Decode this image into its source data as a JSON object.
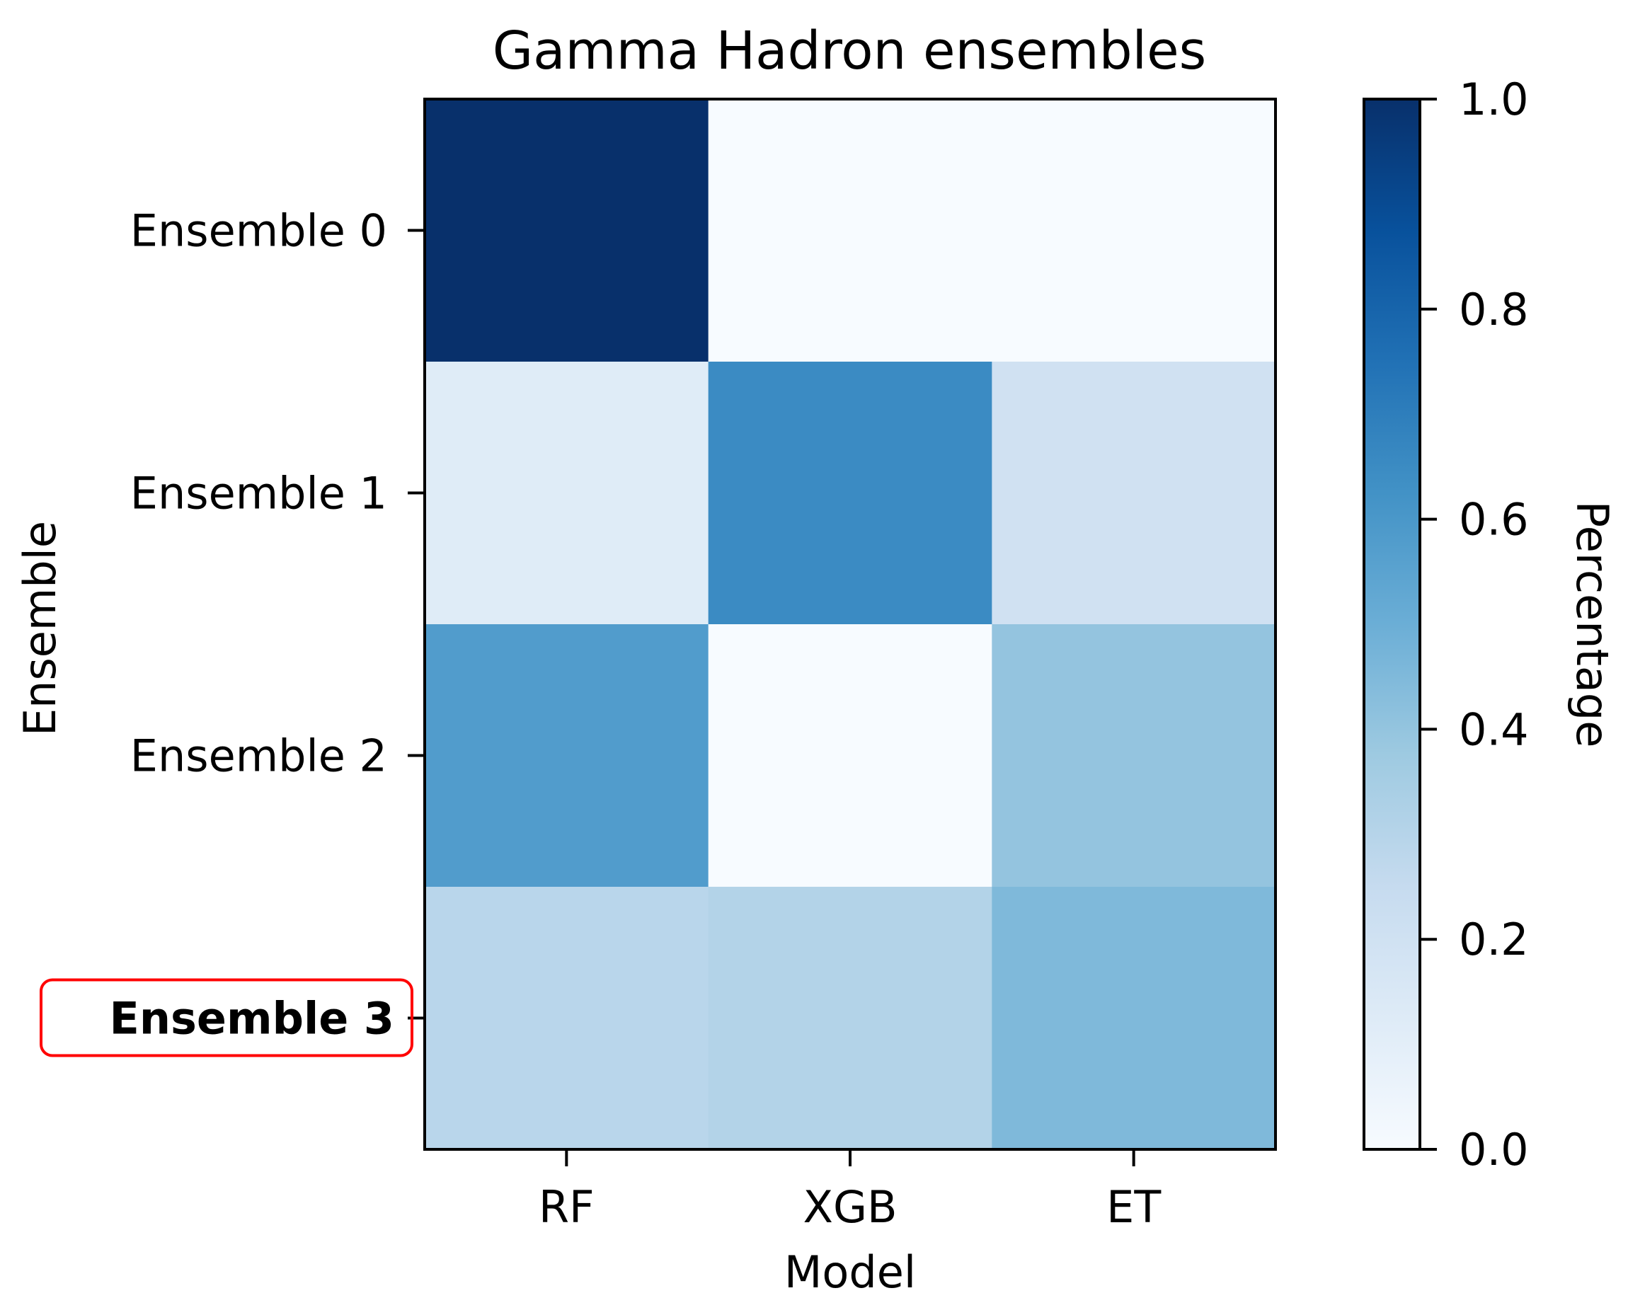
{
  "chart_data": {
    "type": "heatmap",
    "title": "Gamma Hadron ensembles",
    "xlabel": "Model",
    "ylabel": "Ensemble",
    "x_categories": [
      "RF",
      "XGB",
      "ET"
    ],
    "y_categories": [
      "Ensemble 0",
      "Ensemble 1",
      "Ensemble 2",
      "Ensemble 3"
    ],
    "values": [
      [
        1.0,
        0.0,
        0.0
      ],
      [
        0.12,
        0.65,
        0.2
      ],
      [
        0.58,
        0.0,
        0.4
      ],
      [
        0.29,
        0.31,
        0.45
      ]
    ],
    "colormap": "Blues",
    "colorbar": {
      "label": "Percentage",
      "range": [
        0.0,
        1.0
      ],
      "ticks": [
        "0.0",
        "0.2",
        "0.4",
        "0.6",
        "0.8",
        "1.0"
      ]
    },
    "highlight": {
      "label": "Ensemble 3",
      "style": "bold with red rounded box",
      "color": "#ff0000"
    }
  }
}
